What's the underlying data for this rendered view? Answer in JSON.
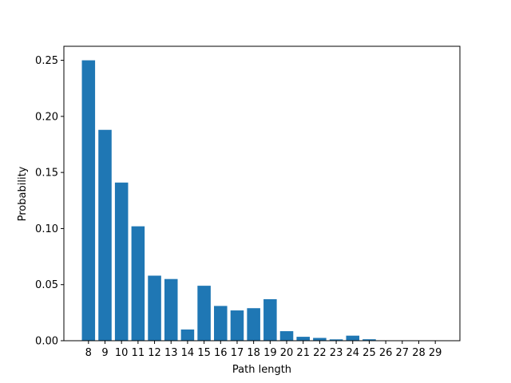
{
  "chart_data": {
    "type": "bar",
    "xlabel": "Path length",
    "ylabel": "Probability",
    "x": [
      8,
      9,
      10,
      11,
      12,
      13,
      14,
      15,
      16,
      17,
      18,
      19,
      20,
      21,
      22,
      23,
      24,
      25,
      26,
      27,
      28,
      29
    ],
    "values": [
      0.25,
      0.188,
      0.141,
      0.102,
      0.058,
      0.055,
      0.01,
      0.049,
      0.031,
      0.027,
      0.029,
      0.037,
      0.0085,
      0.0035,
      0.0025,
      0.0012,
      0.0045,
      0.0013,
      0,
      0,
      0,
      0
    ],
    "color": "#1f77b4",
    "xlim": [
      6.51,
      30.49
    ],
    "xticks": [
      8,
      9,
      10,
      11,
      12,
      13,
      14,
      15,
      16,
      17,
      18,
      19,
      20,
      21,
      22,
      23,
      24,
      25,
      26,
      27,
      28,
      29
    ],
    "ylim": [
      0,
      0.2625
    ],
    "yticks": [
      {
        "value": 0,
        "label": "0.00"
      },
      {
        "value": 0.05,
        "label": "0.05"
      },
      {
        "value": 0.1,
        "label": "0.10"
      },
      {
        "value": 0.15,
        "label": "0.15"
      },
      {
        "value": 0.2,
        "label": "0.20"
      },
      {
        "value": 0.25,
        "label": "0.25"
      }
    ],
    "bar_width": 0.8,
    "grid": false
  }
}
